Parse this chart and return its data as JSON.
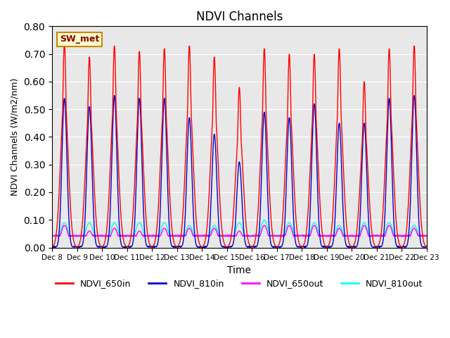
{
  "title": "NDVI Channels",
  "xlabel": "Time",
  "ylabel": "NDVI Channels (W/m2/nm)",
  "ylim": [
    0.0,
    0.8
  ],
  "yticks": [
    0.0,
    0.1,
    0.2,
    0.3,
    0.4,
    0.5,
    0.6,
    0.7,
    0.8
  ],
  "annotation_text": "SW_met",
  "annotation_bg": "#ffffcc",
  "annotation_border": "#cc8800",
  "colors": {
    "NDVI_650in": "#ff0000",
    "NDVI_810in": "#0000cc",
    "NDVI_650out": "#ff00ff",
    "NDVI_810out": "#00ffff"
  },
  "background_color": "#e8e8e8",
  "n_days": 15,
  "start_day": 8,
  "peak_650in": [
    0.74,
    0.69,
    0.73,
    0.71,
    0.72,
    0.73,
    0.69,
    0.58,
    0.72,
    0.7,
    0.7,
    0.72,
    0.6,
    0.72,
    0.73
  ],
  "peak_810in": [
    0.54,
    0.51,
    0.55,
    0.54,
    0.54,
    0.47,
    0.41,
    0.31,
    0.49,
    0.47,
    0.52,
    0.45,
    0.45,
    0.54,
    0.55
  ],
  "peak_650out": [
    0.08,
    0.06,
    0.07,
    0.06,
    0.07,
    0.07,
    0.07,
    0.06,
    0.08,
    0.08,
    0.08,
    0.07,
    0.08,
    0.08,
    0.07
  ],
  "peak_810out": [
    0.09,
    0.09,
    0.09,
    0.09,
    0.09,
    0.08,
    0.08,
    0.09,
    0.1,
    0.09,
    0.09,
    0.08,
    0.09,
    0.09,
    0.08
  ],
  "x_tick_labels": [
    "Dec 8",
    "Dec 9",
    "Dec 10",
    "Dec 11",
    "Dec 12",
    "Dec 13",
    "Dec 14",
    "Dec 15",
    "Dec 16",
    "Dec 17",
    "Dec 18",
    "Dec 19",
    "Dec 20",
    "Dec 21",
    "Dec 22",
    "Dec 23"
  ],
  "line_width": 1.0
}
